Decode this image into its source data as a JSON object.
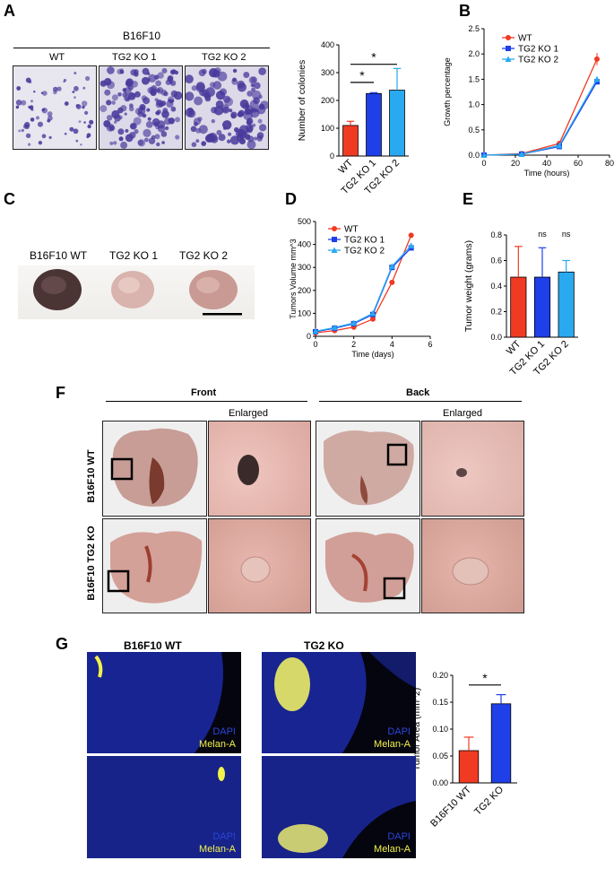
{
  "panels": {
    "A": "A",
    "B": "B",
    "C": "C",
    "D": "D",
    "E": "E",
    "F": "F",
    "G": "G"
  },
  "panel_a": {
    "header": "B16F10",
    "plate_labels": [
      "WT",
      "TG2 KO 1",
      "TG2 KO 2"
    ]
  },
  "panel_c": {
    "tumor_labels": [
      "B16F10 WT",
      "TG2 KO 1",
      "TG2 KO 2"
    ]
  },
  "panel_f": {
    "front": "Front",
    "back": "Back",
    "enlarged": "Enlarged",
    "row_labels": [
      "B16F10 WT",
      "B16F10 TG2 KO"
    ]
  },
  "panel_g": {
    "col_titles": [
      "B16F10 WT",
      "TG2 KO"
    ],
    "stain_dapi": "DAPI",
    "stain_melan": "Melan-A"
  },
  "colors": {
    "wt": "#f03a22",
    "ko1": "#1f3fe8",
    "ko2": "#29a9f0",
    "dapi": "#1a2fb0",
    "melan": "#f2f24a"
  },
  "chart_data": [
    {
      "id": "colonies",
      "type": "bar",
      "ylabel": "Number of colonies",
      "categories": [
        "WT",
        "TG2 KO 1",
        "TG2 KO 2"
      ],
      "values": [
        110,
        225,
        237
      ],
      "errors": [
        15,
        3,
        78
      ],
      "ylim": [
        0,
        400
      ],
      "yticks": [
        0,
        100,
        200,
        300,
        400
      ],
      "significance": [
        "*",
        "*"
      ]
    },
    {
      "id": "growth",
      "type": "line",
      "xlabel": "Time (hours)",
      "ylabel": "Growth percentage",
      "xlim": [
        0,
        80
      ],
      "xticks": [
        0,
        20,
        40,
        60,
        80
      ],
      "ylim": [
        0,
        2.5
      ],
      "yticks": [
        "0.0",
        "0.5",
        "1.0",
        "1.5",
        "2.0",
        "2.5"
      ],
      "x": [
        0,
        24,
        48,
        72
      ],
      "series": [
        {
          "name": "WT",
          "values": [
            0.0,
            0.03,
            0.23,
            1.9
          ],
          "errors": [
            0,
            0,
            0,
            0.12
          ]
        },
        {
          "name": "TG2 KO 1",
          "values": [
            0.0,
            0.02,
            0.17,
            1.45
          ],
          "errors": [
            0,
            0,
            0,
            0.05
          ]
        },
        {
          "name": "TG2 KO 2",
          "values": [
            0.0,
            0.02,
            0.19,
            1.5
          ],
          "errors": [
            0,
            0,
            0,
            0.06
          ]
        }
      ]
    },
    {
      "id": "volume",
      "type": "line",
      "xlabel": "Time (days)",
      "ylabel": "Tumors Volume mm^3",
      "xlim": [
        0,
        6
      ],
      "xticks": [
        0,
        2,
        4,
        6
      ],
      "ylim": [
        0,
        500
      ],
      "yticks": [
        0,
        100,
        200,
        300,
        400,
        500
      ],
      "x": [
        0,
        1,
        2,
        3,
        4,
        5
      ],
      "series": [
        {
          "name": "WT",
          "values": [
            15,
            25,
            40,
            75,
            235,
            440
          ]
        },
        {
          "name": "TG2 KO 1",
          "values": [
            20,
            35,
            55,
            95,
            300,
            385
          ]
        },
        {
          "name": "TG2 KO 2",
          "values": [
            22,
            38,
            58,
            100,
            305,
            395
          ]
        }
      ]
    },
    {
      "id": "weight",
      "type": "bar",
      "ylabel": "Tumor weight (grams)",
      "categories": [
        "WT",
        "TG2 KO 1",
        "TG2 KO 2"
      ],
      "values": [
        0.47,
        0.47,
        0.51
      ],
      "errors": [
        0.24,
        0.23,
        0.09
      ],
      "ylim": [
        0,
        0.8
      ],
      "yticks": [
        "0.0",
        "0.2",
        "0.4",
        "0.6",
        "0.8"
      ],
      "annotations": [
        "ns",
        "ns"
      ]
    },
    {
      "id": "area",
      "type": "bar",
      "ylabel": "Tumor Area (mm^2)",
      "categories": [
        "B16F10 WT",
        "TG2 KO"
      ],
      "values": [
        0.06,
        0.147
      ],
      "errors": [
        0.025,
        0.017
      ],
      "ylim": [
        0,
        0.2
      ],
      "yticks": [
        "0.00",
        "0.05",
        "0.10",
        "0.15",
        "0.20"
      ],
      "significance": [
        "*"
      ]
    }
  ]
}
